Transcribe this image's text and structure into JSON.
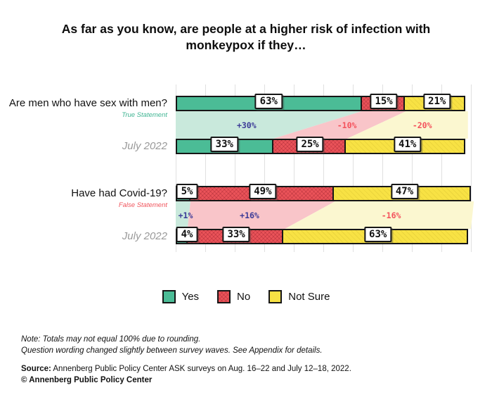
{
  "title": "As far as you know, are people at a higher risk of infection with monkeypox if they…",
  "chart_data": {
    "type": "bar",
    "subtype": "stacked-horizontal-comparison",
    "unit": "%",
    "x_range": [
      0,
      100
    ],
    "x_gridlines_every": 10,
    "series_labels": [
      "Yes",
      "No",
      "Not Sure"
    ],
    "colors": {
      "yes": "#4bbc96",
      "no": "#eb5359",
      "not_sure": "#f8e244",
      "yes_light": "#c9e9dc",
      "no_light": "#f9c5c9",
      "not_sure_light": "#fbf7d0",
      "positive_change": "#3b3a97",
      "negative_change": "#f4525c",
      "bar_border": "#161616",
      "gridline": "#e0e0e0"
    },
    "groups": [
      {
        "question": "Are men who have sex with men?",
        "statement": "True Statement",
        "waves": [
          {
            "label": "",
            "values": [
              63,
              15,
              21
            ]
          },
          {
            "label": "July 2022",
            "values": [
              33,
              25,
              41
            ]
          }
        ],
        "changes": [
          "+30%",
          "-10%",
          "-20%"
        ]
      },
      {
        "question": "Have had Covid-19?",
        "statement": "False Statement",
        "waves": [
          {
            "label": "",
            "values": [
              5,
              49,
              47
            ]
          },
          {
            "label": "July 2022",
            "values": [
              4,
              33,
              63
            ]
          }
        ],
        "changes": [
          "+1%",
          "+16%",
          "-16%"
        ]
      }
    ]
  },
  "legend": {
    "items": [
      {
        "label": "Yes",
        "color": "#4bbc96"
      },
      {
        "label": "No",
        "color": "#eb5359"
      },
      {
        "label": "Not Sure",
        "color": "#f8e244"
      }
    ]
  },
  "notes": {
    "line1": "Note: Totals may not equal 100% due to rounding.",
    "line2": "Question wording changed slightly between survey waves. See Appendix for details."
  },
  "source": {
    "prefix": "Source:",
    "text": " Annenberg Public Policy Center ASK surveys on Aug. 16–22 and July 12–18, 2022.",
    "copyright": "© Annenberg Public Policy Center"
  }
}
